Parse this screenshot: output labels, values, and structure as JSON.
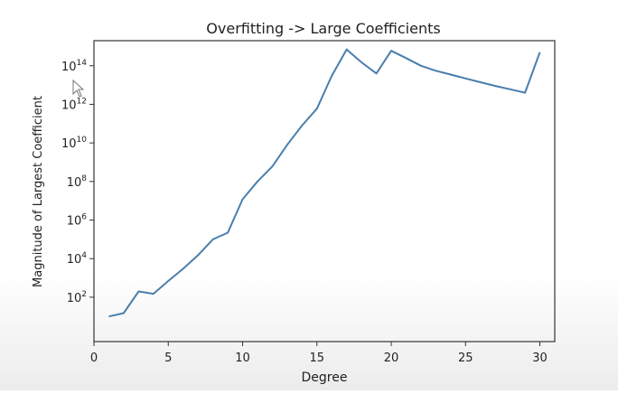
{
  "chart_data": {
    "type": "line",
    "title": "Overfitting -> Large Coefficients",
    "xlabel": "Degree",
    "ylabel": "Magnitude of Largest Coefficient",
    "xlim": [
      0,
      31
    ],
    "xticks": [
      0,
      5,
      10,
      15,
      20,
      25,
      30
    ],
    "yscale": "log",
    "ylim": [
      0.5,
      2000000000000000.0
    ],
    "yticks": [
      {
        "value": 100,
        "base": "10",
        "exp": "2"
      },
      {
        "value": 10000,
        "base": "10",
        "exp": "4"
      },
      {
        "value": 1000000,
        "base": "10",
        "exp": "6"
      },
      {
        "value": 100000000,
        "base": "10",
        "exp": "8"
      },
      {
        "value": 10000000000,
        "base": "10",
        "exp": "10"
      },
      {
        "value": 1000000000000,
        "base": "10",
        "exp": "12"
      },
      {
        "value": 100000000000000,
        "base": "10",
        "exp": "14"
      }
    ],
    "grid": false,
    "series": [
      {
        "color": "#4a7ead",
        "x": [
          1,
          2,
          3,
          4,
          5,
          6,
          7,
          8,
          9,
          10,
          11,
          12,
          13,
          14,
          15,
          16,
          17,
          18,
          19,
          20,
          21,
          22,
          23,
          24,
          25,
          26,
          27,
          28,
          29,
          30
        ],
        "y": [
          10,
          15,
          200,
          150,
          700,
          3000,
          15000,
          100000,
          220000,
          12000000,
          100000000,
          600000000,
          8000000000,
          80000000000,
          600000000000,
          30000000000000,
          700000000000000,
          150000000000000,
          40000000000000,
          600000000000000,
          250000000000000,
          100000000000000,
          55000000000000,
          35000000000000,
          22000000000000,
          14000000000000,
          9000000000000,
          6000000000000,
          4000000000000,
          500000000000000
        ]
      }
    ]
  }
}
